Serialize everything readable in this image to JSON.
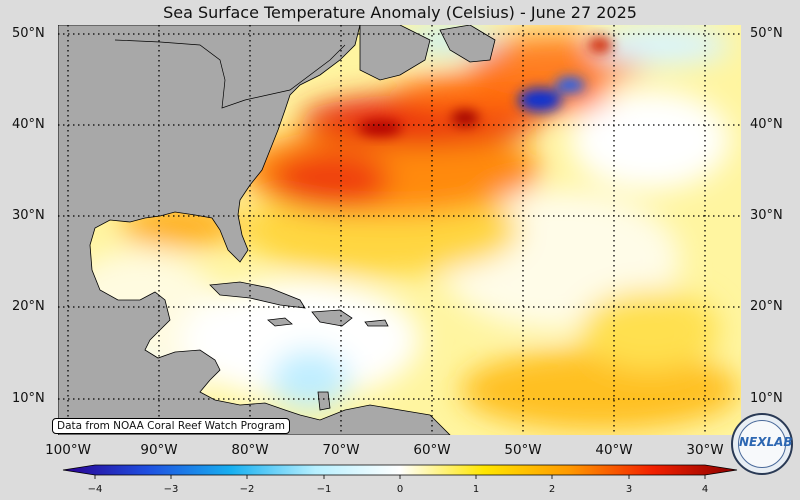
{
  "title": "Sea Surface Temperature Anomaly (Celsius) - June 27 2025",
  "lat_labels": [
    "50°N",
    "40°N",
    "30°N",
    "20°N",
    "10°N"
  ],
  "lon_labels": [
    "100°W",
    "90°W",
    "80°W",
    "70°W",
    "60°W",
    "50°W",
    "40°W",
    "30°W"
  ],
  "credit": "Data from NOAA Coral Reef Watch Program",
  "colorbar": {
    "ticks": [
      "−4",
      "−3",
      "−2",
      "−1",
      "0",
      "1",
      "2",
      "3",
      "4"
    ],
    "min": -4,
    "max": 4,
    "colors": [
      "#2a0090",
      "#1f4fe0",
      "#18b0f0",
      "#b8f0ff",
      "#ffffff",
      "#ffe600",
      "#ff9a00",
      "#f22000",
      "#8a0000"
    ]
  },
  "logo_text": "NEXLAB",
  "colors": {
    "land": "#a8a8a8",
    "background": "#dcdcdc",
    "neutral_ocean": "#fff7b0"
  }
}
